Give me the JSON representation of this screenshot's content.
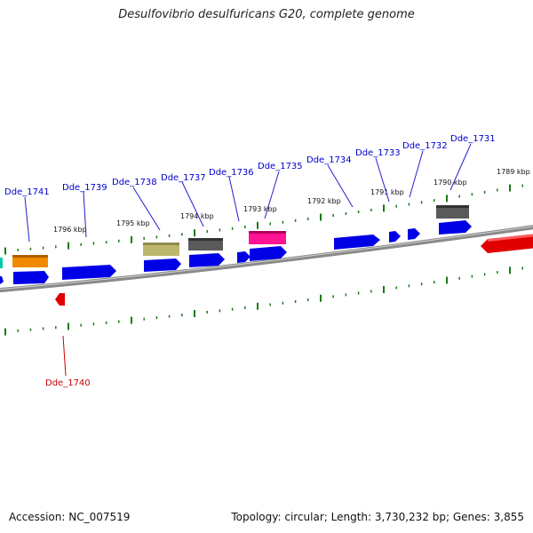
{
  "title": "Desulfovibrio desulfuricans G20, complete genome",
  "footer": {
    "accession": "Accession: NC_007519",
    "stats": "Topology: circular; Length: 3,730,232 bp; Genes: 3,855"
  },
  "kbp_labels": [
    "1789 kbp",
    "1790 kbp",
    "1791 kbp",
    "1792 kbp",
    "1793 kbp",
    "1794 kbp",
    "1795 kbp",
    "1796 kbp"
  ],
  "gene_labels": [
    "Dde_1731",
    "Dde_1732",
    "Dde_1733",
    "Dde_1734",
    "Dde_1735",
    "Dde_1736",
    "Dde_1737",
    "Dde_1738",
    "Dde_1739",
    "Dde_1740",
    "Dde_1741"
  ],
  "colors": {
    "blue": "#0000e6",
    "orange": "#f08a00",
    "khaki": "#bdb76b",
    "gray": "#5a5a5a",
    "magenta": "#ff1493",
    "red": "#e00000",
    "teal": "#00c9a7",
    "tick": "#1a7a1a"
  }
}
